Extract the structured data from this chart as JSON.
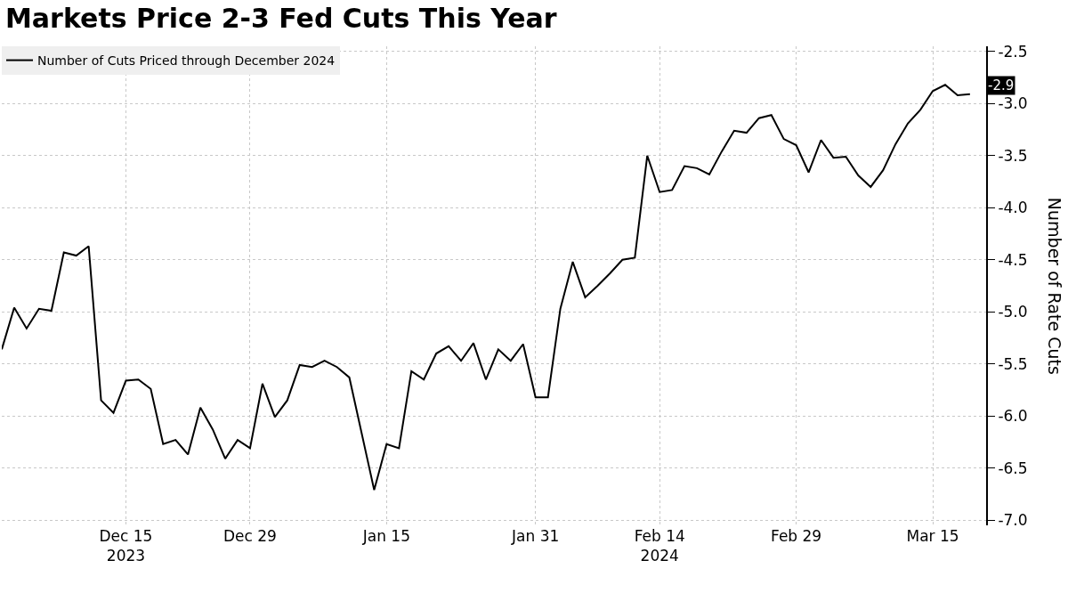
{
  "chart_data": {
    "type": "line",
    "title": "Markets Price 2-3 Fed Cuts This Year",
    "ylabel": "Number of Rate Cuts",
    "categories": [
      null,
      null,
      null,
      null,
      null,
      null,
      null,
      null,
      null,
      null,
      "Dec 15\n2023",
      null,
      null,
      null,
      null,
      null,
      null,
      null,
      null,
      null,
      "Dec 29",
      null,
      null,
      null,
      null,
      null,
      null,
      null,
      null,
      null,
      null,
      "Jan 15",
      null,
      null,
      null,
      null,
      null,
      null,
      null,
      null,
      null,
      null,
      null,
      "Jan 31",
      null,
      null,
      null,
      null,
      null,
      null,
      null,
      null,
      null,
      "Feb 14\n2024",
      null,
      null,
      null,
      null,
      null,
      null,
      null,
      null,
      null,
      null,
      "Feb 29",
      null,
      null,
      null,
      null,
      null,
      null,
      null,
      null,
      null,
      null,
      "Mar 15",
      null,
      null,
      null
    ],
    "series": [
      {
        "name": "Number of Cuts Priced through December 2024",
        "color": "#000000",
        "values": [
          -5.36,
          -4.96,
          -5.16,
          -4.97,
          -4.99,
          -4.43,
          -4.46,
          -4.37,
          -5.85,
          -5.97,
          -5.66,
          -5.65,
          -5.74,
          -6.27,
          -6.23,
          -6.37,
          -5.92,
          -6.13,
          -6.41,
          -6.23,
          -6.31,
          -5.69,
          -6.01,
          -5.85,
          -5.51,
          -5.53,
          -5.47,
          -5.53,
          -5.63,
          -6.17,
          -6.71,
          -6.27,
          -6.31,
          -5.57,
          -5.65,
          -5.4,
          -5.33,
          -5.47,
          -5.3,
          -5.65,
          -5.36,
          -5.47,
          -5.31,
          -5.82,
          -5.82,
          -4.97,
          -4.52,
          -4.86,
          -4.75,
          -4.63,
          -4.5,
          -4.48,
          -3.5,
          -3.85,
          -3.83,
          -3.6,
          -3.62,
          -3.68,
          -3.46,
          -3.26,
          -3.28,
          -3.14,
          -3.11,
          -3.34,
          -3.4,
          -3.66,
          -3.35,
          -3.52,
          -3.51,
          -3.69,
          -3.8,
          -3.64,
          -3.39,
          -3.19,
          -3.06,
          -2.88,
          -2.82,
          -2.92,
          -2.91
        ]
      }
    ],
    "annotations": [
      "-2.9"
    ],
    "ylim": [
      -7.05,
      -2.45
    ],
    "yticks": [
      {
        "value": -2.5,
        "label": "-2.5"
      },
      {
        "value": -3,
        "label": "-3.0"
      },
      {
        "value": -3.5,
        "label": "-3.5"
      },
      {
        "value": -4,
        "label": "-4.0"
      },
      {
        "value": -4.5,
        "label": "-4.5"
      },
      {
        "value": -5,
        "label": "-5.0"
      },
      {
        "value": -5.5,
        "label": "-5.5"
      },
      {
        "value": -6,
        "label": "-6.0"
      },
      {
        "value": -6.5,
        "label": "-6.5"
      },
      {
        "value": -7,
        "label": "-7.0"
      }
    ],
    "grid": true,
    "legend": "top left",
    "marker": "none",
    "line_style": "solid"
  }
}
